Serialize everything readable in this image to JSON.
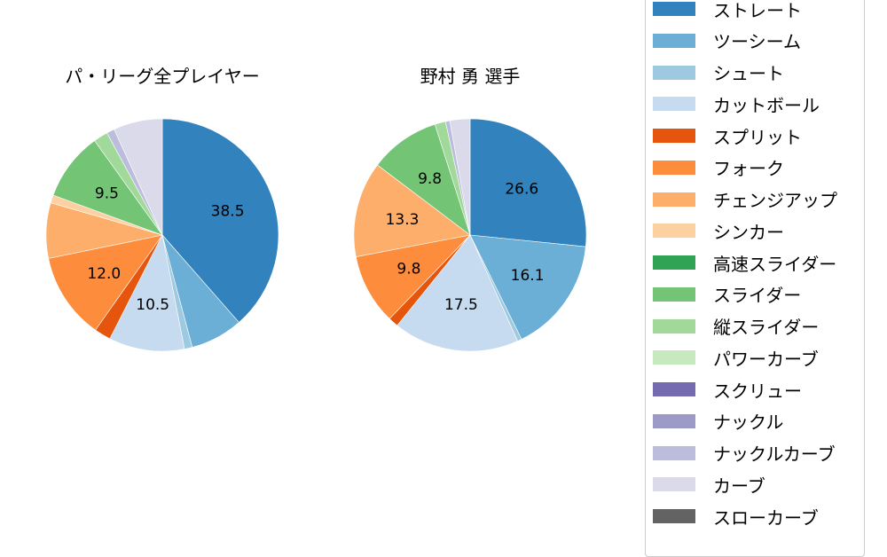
{
  "chart_data": [
    {
      "type": "pie",
      "title": "パ・リーグ全プレイヤー",
      "start_angle": 90,
      "direction": "clockwise",
      "center": [
        183,
        265
      ],
      "radius": 131,
      "slices": [
        {
          "label": "ストレート",
          "value": 38.5,
          "show_label": true
        },
        {
          "label": "ツーシーム",
          "value": 7.3,
          "show_label": false
        },
        {
          "label": "シュート",
          "value": 1.1,
          "show_label": false
        },
        {
          "label": "カットボール",
          "value": 10.5,
          "show_label": true
        },
        {
          "label": "スプリット",
          "value": 2.3,
          "show_label": false
        },
        {
          "label": "フォーク",
          "value": 12.0,
          "show_label": true
        },
        {
          "label": "チェンジアップ",
          "value": 7.7,
          "show_label": false
        },
        {
          "label": "シンカー",
          "value": 1.1,
          "show_label": false
        },
        {
          "label": "スライダー",
          "value": 9.5,
          "show_label": true
        },
        {
          "label": "縦スライダー",
          "value": 2.0,
          "show_label": false
        },
        {
          "label": "ナックルカーブ",
          "value": 1.1,
          "show_label": false
        },
        {
          "label": "カーブ",
          "value": 6.8,
          "show_label": false
        }
      ]
    },
    {
      "type": "pie",
      "title": "野村 勇  選手",
      "start_angle": 90,
      "direction": "clockwise",
      "center": [
        530,
        265
      ],
      "radius": 131,
      "slices": [
        {
          "label": "ストレート",
          "value": 26.6,
          "show_label": true
        },
        {
          "label": "ツーシーム",
          "value": 16.1,
          "show_label": true
        },
        {
          "label": "シュート",
          "value": 0.6,
          "show_label": false
        },
        {
          "label": "カットボール",
          "value": 17.5,
          "show_label": true
        },
        {
          "label": "スプリット",
          "value": 1.4,
          "show_label": false
        },
        {
          "label": "フォーク",
          "value": 9.8,
          "show_label": true
        },
        {
          "label": "チェンジアップ",
          "value": 13.3,
          "show_label": true
        },
        {
          "label": "スライダー",
          "value": 9.8,
          "show_label": true
        },
        {
          "label": "縦スライダー",
          "value": 1.5,
          "show_label": false
        },
        {
          "label": "ナックルカーブ",
          "value": 0.6,
          "show_label": false
        },
        {
          "label": "カーブ",
          "value": 2.8,
          "show_label": false
        }
      ]
    }
  ],
  "legend": {
    "position": "right",
    "items": [
      {
        "label": "ストレート",
        "color": "#3182bd"
      },
      {
        "label": "ツーシーム",
        "color": "#6baed6"
      },
      {
        "label": "シュート",
        "color": "#9ecae1"
      },
      {
        "label": "カットボール",
        "color": "#c6dbef"
      },
      {
        "label": "スプリット",
        "color": "#e6550d"
      },
      {
        "label": "フォーク",
        "color": "#fd8d3c"
      },
      {
        "label": "チェンジアップ",
        "color": "#fdae6b"
      },
      {
        "label": "シンカー",
        "color": "#fdd0a2"
      },
      {
        "label": "高速スライダー",
        "color": "#31a354"
      },
      {
        "label": "スライダー",
        "color": "#74c476"
      },
      {
        "label": "縦スライダー",
        "color": "#a1d99b"
      },
      {
        "label": "パワーカーブ",
        "color": "#c7e9c0"
      },
      {
        "label": "スクリュー",
        "color": "#756bb1"
      },
      {
        "label": "ナックル",
        "color": "#9e9ac8"
      },
      {
        "label": "ナックルカーブ",
        "color": "#bcbddc"
      },
      {
        "label": "カーブ",
        "color": "#dadaeb"
      },
      {
        "label": "スローカーブ",
        "color": "#636363"
      }
    ]
  }
}
